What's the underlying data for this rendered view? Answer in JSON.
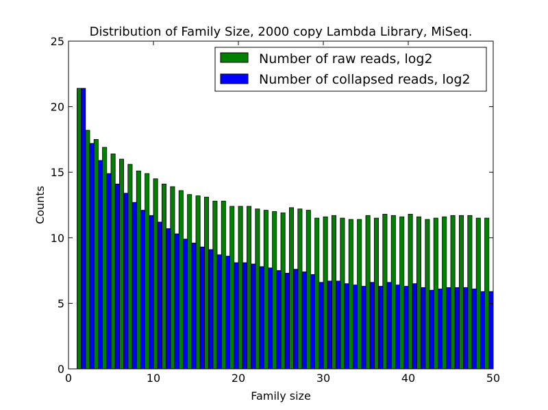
{
  "chart_data": {
    "type": "bar",
    "title": "Distribution of Family Size, 2000 copy Lambda Library, MiSeq.",
    "xlabel": "Family size",
    "ylabel": "Counts",
    "xlim": [
      0,
      50
    ],
    "ylim": [
      0,
      25
    ],
    "xticks": [
      "0",
      "10",
      "20",
      "30",
      "40",
      "50"
    ],
    "yticks": [
      "0",
      "5",
      "10",
      "15",
      "20",
      "25"
    ],
    "grid": false,
    "legend_position": "top-right",
    "x": [
      1,
      2,
      3,
      4,
      5,
      6,
      7,
      8,
      9,
      10,
      11,
      12,
      13,
      14,
      15,
      16,
      17,
      18,
      19,
      20,
      21,
      22,
      23,
      24,
      25,
      26,
      27,
      28,
      29,
      30,
      31,
      32,
      33,
      34,
      35,
      36,
      37,
      38,
      39,
      40,
      41,
      42,
      43,
      44,
      45,
      46,
      47,
      48,
      49
    ],
    "series": [
      {
        "name": "Number of raw reads, log2",
        "color": "#008000",
        "values": [
          21.4,
          18.2,
          17.5,
          16.9,
          16.4,
          16.0,
          15.6,
          15.1,
          14.9,
          14.5,
          14.1,
          13.9,
          13.6,
          13.3,
          13.2,
          13.1,
          12.8,
          12.8,
          12.4,
          12.4,
          12.4,
          12.2,
          12.1,
          12.0,
          11.9,
          12.3,
          12.2,
          12.1,
          11.5,
          11.6,
          11.7,
          11.5,
          11.4,
          11.4,
          11.7,
          11.5,
          11.8,
          11.7,
          11.6,
          11.8,
          11.6,
          11.4,
          11.5,
          11.6,
          11.7,
          11.7,
          11.7,
          11.5,
          11.5
        ]
      },
      {
        "name": "Number of collapsed reads, log2",
        "color": "#0000ff",
        "values": [
          21.4,
          17.2,
          15.9,
          14.9,
          14.1,
          13.4,
          12.7,
          12.1,
          11.7,
          11.2,
          10.7,
          10.3,
          9.9,
          9.6,
          9.3,
          9.1,
          8.7,
          8.6,
          8.1,
          8.1,
          8.0,
          7.8,
          7.7,
          7.5,
          7.3,
          7.6,
          7.4,
          7.2,
          6.6,
          6.7,
          6.7,
          6.5,
          6.4,
          6.3,
          6.6,
          6.3,
          6.6,
          6.4,
          6.3,
          6.5,
          6.2,
          6.0,
          6.1,
          6.2,
          6.2,
          6.2,
          6.1,
          5.9,
          5.9
        ]
      }
    ]
  }
}
